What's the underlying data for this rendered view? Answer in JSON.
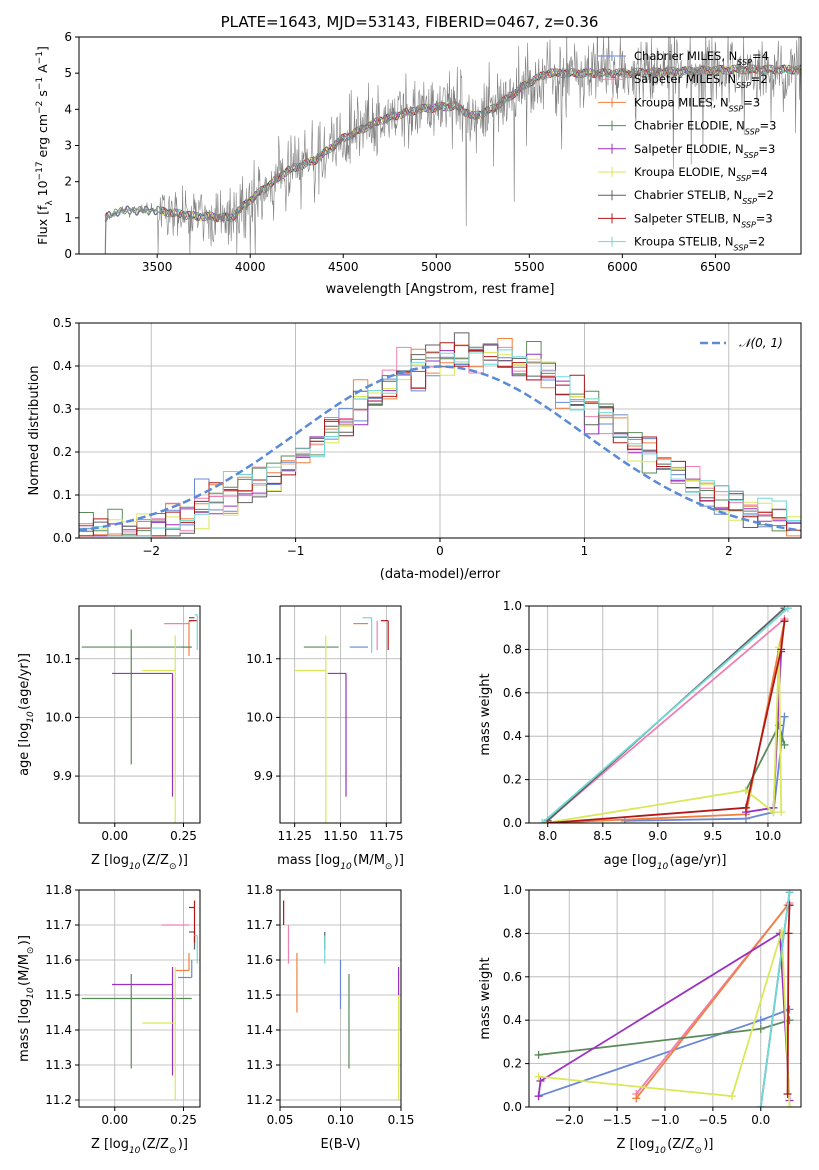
{
  "figure": {
    "title": "PLATE=1643, MJD=53143, FIBERID=0467, z=0.36"
  },
  "chart_data": [
    {
      "id": "spectrum",
      "type": "line",
      "xlabel": "wavelength [Angstrom, rest frame]",
      "ylabel": "Flux [f$_\\lambda$ 10$^{-17}$ erg cm$^{-2}$ s$^{-1}$ A$^{-1}$]",
      "ylabel_parts": {
        "pre": "Flux [f",
        "lam": "λ",
        "mid": "10",
        "e1": "−17",
        "u1": " erg cm",
        "e2": "−2",
        "u2": " s",
        "e3": "−1",
        "u3": " A",
        "e4": "−1",
        "end": "]"
      },
      "xlim": [
        3080,
        6960
      ],
      "ylim": [
        0,
        6
      ],
      "xticks": [
        3500,
        4000,
        4500,
        5000,
        5500,
        6000,
        6500
      ],
      "yticks": [
        0,
        1,
        2,
        3,
        4,
        5,
        6
      ],
      "grid": false,
      "legend_position": "right",
      "data_range": [
        3220,
        6960
      ],
      "continuum": [
        [
          3220,
          1.0
        ],
        [
          3300,
          1.2
        ],
        [
          3500,
          1.2
        ],
        [
          3700,
          1.05
        ],
        [
          3900,
          1.0
        ],
        [
          4000,
          1.5
        ],
        [
          4200,
          2.3
        ],
        [
          4350,
          2.6
        ],
        [
          4500,
          3.2
        ],
        [
          4700,
          3.7
        ],
        [
          4900,
          4.0
        ],
        [
          5100,
          4.1
        ],
        [
          5200,
          3.8
        ],
        [
          5300,
          4.0
        ],
        [
          5500,
          4.75
        ],
        [
          5600,
          5.0
        ],
        [
          5800,
          5.0
        ],
        [
          6000,
          5.0
        ],
        [
          6300,
          5.05
        ],
        [
          6600,
          5.1
        ],
        [
          6960,
          5.1
        ]
      ],
      "series": [
        {
          "name": "Chabrier MILES, N$_{SSP}$=4",
          "label": "Chabrier MILES, N",
          "sub": "SSP",
          "n": "=4",
          "color": "#6a87d6"
        },
        {
          "name": "Salpeter MILES, N$_{SSP}$=2",
          "label": "Salpeter MILES, N",
          "sub": "SSP",
          "n": "=2",
          "color": "#f080b0"
        },
        {
          "name": "Kroupa MILES, N$_{SSP}$=3",
          "label": "Kroupa MILES, N",
          "sub": "SSP",
          "n": "=3",
          "color": "#f08040"
        },
        {
          "name": "Chabrier ELODIE, N$_{SSP}$=3",
          "label": "Chabrier ELODIE, N",
          "sub": "SSP",
          "n": "=3",
          "color": "#5a8a5a"
        },
        {
          "name": "Salpeter ELODIE, N$_{SSP}$=3",
          "label": "Salpeter ELODIE, N",
          "sub": "SSP",
          "n": "=3",
          "color": "#9b30c0"
        },
        {
          "name": "Kroupa ELODIE, N$_{SSP}$=4",
          "label": "Kroupa ELODIE, N",
          "sub": "SSP",
          "n": "=4",
          "color": "#d8e858"
        },
        {
          "name": "Chabrier STELIB, N$_{SSP}$=2",
          "label": "Chabrier STELIB, N",
          "sub": "SSP",
          "n": "=2",
          "color": "#606060"
        },
        {
          "name": "Salpeter STELIB, N$_{SSP}$=3",
          "label": "Salpeter STELIB, N",
          "sub": "SSP",
          "n": "=3",
          "color": "#b01818"
        },
        {
          "name": "Kroupa STELIB, N$_{SSP}$=2",
          "label": "Kroupa STELIB, N",
          "sub": "SSP",
          "n": "=2",
          "color": "#70d8d8"
        }
      ],
      "data_color": "#808080"
    },
    {
      "id": "residuals",
      "type": "histogram",
      "xlabel": "(data-model)/error",
      "ylabel": "Normed distribution",
      "xlim": [
        -2.5,
        2.5
      ],
      "ylim": [
        0,
        0.5
      ],
      "xticks": [
        -2,
        -1,
        0,
        1,
        2
      ],
      "yticks": [
        0.0,
        0.1,
        0.2,
        0.3,
        0.4,
        0.5
      ],
      "grid": true,
      "legend_position": "top-right",
      "reference": {
        "label": "$\\mathcal{N}(0,1)$",
        "label_text": "𝒩(0, 1)",
        "mean": 0.0,
        "sd": 1.0,
        "color": "#5a8ad8"
      },
      "bin_start": -2.5,
      "bin_width": 0.1,
      "bins": 50
    },
    {
      "id": "age-vs-Z",
      "type": "errorbar",
      "xlabel": "Z [log$_{10}$(Z/Z$_\\odot$)]",
      "ylabel": "age  [log$_{10}$(age/yr)]",
      "xlim": [
        -0.13,
        0.31
      ],
      "ylim": [
        9.82,
        10.19
      ],
      "xticks": [
        0.0,
        0.25
      ],
      "yticks": [
        9.9,
        10.0,
        10.1
      ],
      "grid": true,
      "points": [
        {
          "x": 0.28,
          "y": 10.12,
          "xerr": [
            0.04,
            0.0
          ],
          "yerr": [
            0.0,
            0.0
          ],
          "color": "#6a87d6"
        },
        {
          "x": 0.27,
          "y": 10.16,
          "xerr": [
            0.09,
            0.0
          ],
          "yerr": [
            0.0,
            0.0
          ],
          "color": "#f080b0"
        },
        {
          "x": 0.27,
          "y": 10.165,
          "xerr": [
            0.0,
            0.01
          ],
          "yerr": [
            0.06,
            0.0
          ],
          "color": "#f08040"
        },
        {
          "x": 0.06,
          "y": 10.12,
          "xerr": [
            0.18,
            0.22
          ],
          "yerr": [
            0.2,
            0.03
          ],
          "color": "#5a8a5a"
        },
        {
          "x": 0.21,
          "y": 10.075,
          "xerr": [
            0.22,
            0.0
          ],
          "yerr": [
            0.21,
            0.0
          ],
          "color": "#9b30c0"
        },
        {
          "x": 0.22,
          "y": 10.08,
          "xerr": [
            0.12,
            0.0
          ],
          "yerr": [
            0.26,
            0.06
          ],
          "color": "#d8e858"
        },
        {
          "x": 0.29,
          "y": 10.17,
          "xerr": [
            0.02,
            0.0
          ],
          "yerr": [
            0.0,
            0.0
          ],
          "color": "#606060"
        },
        {
          "x": 0.29,
          "y": 10.165,
          "xerr": [
            0.02,
            0.01
          ],
          "yerr": [
            0.0,
            0.0
          ],
          "color": "#b01818"
        },
        {
          "x": 0.3,
          "y": 10.175,
          "xerr": [
            0.01,
            0.0
          ],
          "yerr": [
            0.06,
            0.0
          ],
          "color": "#70d8d8"
        }
      ]
    },
    {
      "id": "age-vs-mass",
      "type": "errorbar",
      "xlabel": "mass [log$_{10}$(M/M$_\\odot$)]",
      "ylabel": "",
      "xlim": [
        11.17,
        11.83
      ],
      "ylim": [
        9.82,
        10.19
      ],
      "xticks": [
        11.25,
        11.5,
        11.75
      ],
      "yticks": [
        9.9,
        10.0,
        10.1
      ],
      "grid": true,
      "points": [
        {
          "x": 11.55,
          "y": 10.12,
          "xerr": [
            0.0,
            0.1
          ],
          "yerr": [
            0.0,
            0.0
          ],
          "color": "#6a87d6"
        },
        {
          "x": 11.7,
          "y": 10.165,
          "xerr": [
            0.0,
            0.0
          ],
          "yerr": [
            0.05,
            0.0
          ],
          "color": "#f080b0"
        },
        {
          "x": 11.57,
          "y": 10.16,
          "xerr": [
            0.0,
            0.08
          ],
          "yerr": [
            0.0,
            0.0
          ],
          "color": "#f08040"
        },
        {
          "x": 11.49,
          "y": 10.12,
          "xerr": [
            0.19,
            0.0
          ],
          "yerr": [
            0.0,
            0.0
          ],
          "color": "#5a8a5a"
        },
        {
          "x": 11.53,
          "y": 10.075,
          "xerr": [
            0.1,
            0.0
          ],
          "yerr": [
            0.21,
            0.0
          ],
          "color": "#9b30c0"
        },
        {
          "x": 11.42,
          "y": 10.08,
          "xerr": [
            0.17,
            0.0
          ],
          "yerr": [
            0.26,
            0.06
          ],
          "color": "#d8e858"
        },
        {
          "x": 11.68,
          "y": 10.165,
          "xerr": [
            0.0,
            0.0
          ],
          "yerr": [
            0.0,
            0.0
          ],
          "color": "#606060"
        },
        {
          "x": 11.76,
          "y": 10.165,
          "xerr": [
            0.04,
            0.0
          ],
          "yerr": [
            0.05,
            0.0
          ],
          "color": "#b01818"
        },
        {
          "x": 11.67,
          "y": 10.17,
          "xerr": [
            0.05,
            0.0
          ],
          "yerr": [
            0.06,
            0.0
          ],
          "color": "#70d8d8"
        }
      ]
    },
    {
      "id": "massweight-vs-age",
      "type": "line",
      "xlabel": "age  [log$_{10}$(age/yr)]",
      "ylabel": "mass weight",
      "xlim": [
        7.83,
        10.3
      ],
      "ylim": [
        0,
        1
      ],
      "xticks": [
        8.0,
        8.5,
        9.0,
        9.5,
        10.0
      ],
      "yticks": [
        0.0,
        0.2,
        0.4,
        0.6,
        0.8,
        1.0
      ],
      "grid": true,
      "series": [
        {
          "color": "#6a87d6",
          "x": [
            8.7,
            9.8,
            10.05,
            10.15
          ],
          "y": [
            0.01,
            0.02,
            0.05,
            0.49
          ]
        },
        {
          "color": "#f080b0",
          "x": [
            7.97,
            10.15
          ],
          "y": [
            0.0,
            0.94
          ]
        },
        {
          "color": "#f08040",
          "x": [
            8.0,
            9.8,
            10.15
          ],
          "y": [
            0.0,
            0.04,
            0.93
          ]
        },
        {
          "color": "#5a8a5a",
          "x": [
            9.8,
            10.1,
            10.15
          ],
          "y": [
            0.15,
            0.45,
            0.36
          ]
        },
        {
          "color": "#9b30c0",
          "x": [
            9.8,
            10.05,
            10.12
          ],
          "y": [
            0.05,
            0.07,
            0.79
          ]
        },
        {
          "color": "#d8e858",
          "x": [
            7.98,
            9.8,
            10.05,
            10.1,
            10.12
          ],
          "y": [
            0.0,
            0.15,
            0.05,
            0.81,
            0.05
          ]
        },
        {
          "color": "#606060",
          "x": [
            8.0,
            10.15
          ],
          "y": [
            0.01,
            0.99
          ]
        },
        {
          "color": "#b01818",
          "x": [
            8.0,
            9.8,
            10.12,
            10.15
          ],
          "y": [
            0.0,
            0.07,
            0.8,
            0.93
          ]
        },
        {
          "color": "#70d8d8",
          "x": [
            7.95,
            10.18
          ],
          "y": [
            0.0,
            0.99
          ]
        }
      ]
    },
    {
      "id": "mass-vs-Z",
      "type": "errorbar",
      "xlabel": "Z [log$_{10}$(Z/Z$_\\odot$)]",
      "ylabel": "mass [log$_{10}$(M/M$_\\odot$)]",
      "xlim": [
        -0.13,
        0.31
      ],
      "ylim": [
        11.18,
        11.8
      ],
      "xticks": [
        0.0,
        0.25
      ],
      "yticks": [
        11.2,
        11.3,
        11.4,
        11.5,
        11.6,
        11.7,
        11.8
      ],
      "grid": true,
      "points": [
        {
          "x": 0.28,
          "y": 11.55,
          "xerr": [
            0.05,
            0.0
          ],
          "yerr": [
            0.0,
            0.05
          ],
          "color": "#6a87d6"
        },
        {
          "x": 0.27,
          "y": 11.7,
          "xerr": [
            0.1,
            0.0
          ],
          "yerr": [
            0.0,
            0.0
          ],
          "color": "#f080b0"
        },
        {
          "x": 0.27,
          "y": 11.57,
          "xerr": [
            0.05,
            0.0
          ],
          "yerr": [
            0.0,
            0.05
          ],
          "color": "#f08040"
        },
        {
          "x": 0.06,
          "y": 11.49,
          "xerr": [
            0.18,
            0.22
          ],
          "yerr": [
            0.2,
            0.07
          ],
          "color": "#5a8a5a"
        },
        {
          "x": 0.21,
          "y": 11.53,
          "xerr": [
            0.22,
            0.0
          ],
          "yerr": [
            0.26,
            0.05
          ],
          "color": "#9b30c0"
        },
        {
          "x": 0.22,
          "y": 11.42,
          "xerr": [
            0.12,
            0.0
          ],
          "yerr": [
            0.22,
            0.16
          ],
          "color": "#d8e858"
        },
        {
          "x": 0.29,
          "y": 11.68,
          "xerr": [
            0.02,
            0.0
          ],
          "yerr": [
            0.05,
            0.0
          ],
          "color": "#606060"
        },
        {
          "x": 0.29,
          "y": 11.75,
          "xerr": [
            0.02,
            0.0
          ],
          "yerr": [
            0.1,
            0.02
          ],
          "color": "#b01818"
        },
        {
          "x": 0.3,
          "y": 11.67,
          "xerr": [
            0.01,
            0.0
          ],
          "yerr": [
            0.08,
            0.0
          ],
          "color": "#70d8d8"
        }
      ]
    },
    {
      "id": "mass-vs-ebv",
      "type": "errorbar",
      "xlabel": "E(B-V)",
      "ylabel": "",
      "xlim": [
        0.05,
        0.15
      ],
      "ylim": [
        11.18,
        11.8
      ],
      "xticks": [
        0.05,
        0.1,
        0.15
      ],
      "yticks": [
        11.2,
        11.3,
        11.4,
        11.5,
        11.6,
        11.7,
        11.8
      ],
      "grid": true,
      "points": [
        {
          "x": 0.1,
          "y": 11.55,
          "xerr": [
            0.0,
            0.0
          ],
          "yerr": [
            0.09,
            0.05
          ],
          "color": "#6a87d6"
        },
        {
          "x": 0.057,
          "y": 11.7,
          "xerr": [
            0.0,
            0.0
          ],
          "yerr": [
            0.11,
            0.0
          ],
          "color": "#f080b0"
        },
        {
          "x": 0.064,
          "y": 11.57,
          "xerr": [
            0.0,
            0.0
          ],
          "yerr": [
            0.12,
            0.05
          ],
          "color": "#f08040"
        },
        {
          "x": 0.107,
          "y": 11.49,
          "xerr": [
            0.0,
            0.0
          ],
          "yerr": [
            0.2,
            0.07
          ],
          "color": "#5a8a5a"
        },
        {
          "x": 0.148,
          "y": 11.53,
          "xerr": [
            0.0,
            0.0
          ],
          "yerr": [
            0.13,
            0.05
          ],
          "color": "#9b30c0"
        },
        {
          "x": 0.148,
          "y": 11.42,
          "xerr": [
            0.0,
            0.0
          ],
          "yerr": [
            0.22,
            0.08
          ],
          "color": "#d8e858"
        },
        {
          "x": 0.087,
          "y": 11.68,
          "xerr": [
            0.0,
            0.0
          ],
          "yerr": [
            0.05,
            0.0
          ],
          "color": "#606060"
        },
        {
          "x": 0.053,
          "y": 11.75,
          "xerr": [
            0.0,
            0.0
          ],
          "yerr": [
            0.05,
            0.02
          ],
          "color": "#b01818"
        },
        {
          "x": 0.087,
          "y": 11.67,
          "xerr": [
            0.0,
            0.0
          ],
          "yerr": [
            0.08,
            0.0
          ],
          "color": "#70d8d8"
        }
      ]
    },
    {
      "id": "massweight-vs-Z",
      "type": "line",
      "xlabel": "Z [log$_{10}$(Z/Z$_\\odot$)]",
      "ylabel": "mass weight",
      "xlim": [
        -2.42,
        0.42
      ],
      "ylim": [
        0,
        1
      ],
      "xticks": [
        -2.0,
        -1.5,
        -1.0,
        -0.5,
        0.0
      ],
      "yticks": [
        0.0,
        0.2,
        0.4,
        0.6,
        0.8,
        1.0
      ],
      "grid": true,
      "series": [
        {
          "color": "#6a87d6",
          "x": [
            -2.32,
            0.0,
            0.3
          ],
          "y": [
            0.05,
            0.4,
            0.45
          ]
        },
        {
          "color": "#f080b0",
          "x": [
            -1.3,
            0.3
          ],
          "y": [
            0.06,
            0.94
          ]
        },
        {
          "color": "#f08040",
          "x": [
            -1.3,
            0.28,
            0.3
          ],
          "y": [
            0.04,
            0.93,
            0.93
          ]
        },
        {
          "color": "#5a8a5a",
          "x": [
            -2.32,
            0.0,
            0.3
          ],
          "y": [
            0.24,
            0.36,
            0.4
          ]
        },
        {
          "color": "#9b30c0",
          "x": [
            -2.32,
            -2.3,
            0.2,
            0.3
          ],
          "y": [
            0.05,
            0.12,
            0.8,
            0.03
          ]
        },
        {
          "color": "#d8e858",
          "x": [
            -2.32,
            -0.3,
            0.22,
            0.3
          ],
          "y": [
            0.14,
            0.05,
            0.81,
            0.0
          ]
        },
        {
          "color": "#606060",
          "x": [
            0.0,
            0.3
          ],
          "y": [
            0.0,
            0.99
          ]
        },
        {
          "color": "#b01818",
          "x": [
            0.28,
            0.29,
            0.3
          ],
          "y": [
            0.06,
            0.8,
            0.93
          ]
        },
        {
          "color": "#70d8d8",
          "x": [
            0.0,
            0.3
          ],
          "y": [
            0.0,
            0.99
          ]
        }
      ]
    }
  ]
}
